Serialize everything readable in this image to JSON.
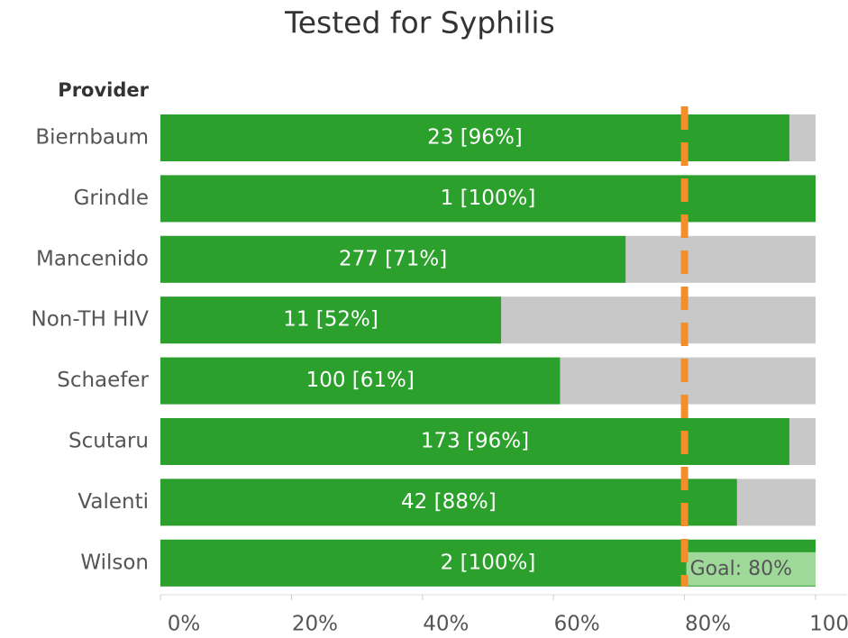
{
  "chart_data": {
    "type": "bar",
    "orientation": "horizontal",
    "title": "Tested for Syphilis",
    "y_label": "Provider",
    "categories": [
      "Biernbaum",
      "Grindle",
      "Mancenido",
      "Non-TH HIV",
      "Schaefer",
      "Scutaru",
      "Valenti",
      "Wilson"
    ],
    "values": [
      96,
      100,
      71,
      52,
      61,
      96,
      88,
      100
    ],
    "value_labels": [
      "23 [96%]",
      "1 [100%]",
      "277 [71%]",
      "11 [52%]",
      "100 [61%]",
      "173 [96%]",
      "42 [88%]",
      "2 [100%]"
    ],
    "color": "#2ca02c",
    "track_color": "#c8c8c8",
    "xlim": [
      0,
      100
    ],
    "xticks": [
      {
        "value": 0,
        "label": "0%"
      },
      {
        "value": 20,
        "label": "20%"
      },
      {
        "value": 40,
        "label": "40%"
      },
      {
        "value": 60,
        "label": "60%"
      },
      {
        "value": 80,
        "label": "80%"
      },
      {
        "value": 100,
        "label": "100%"
      }
    ],
    "goal": {
      "value": 80,
      "label": "Goal: 80%",
      "color": "#f28e2b"
    }
  }
}
